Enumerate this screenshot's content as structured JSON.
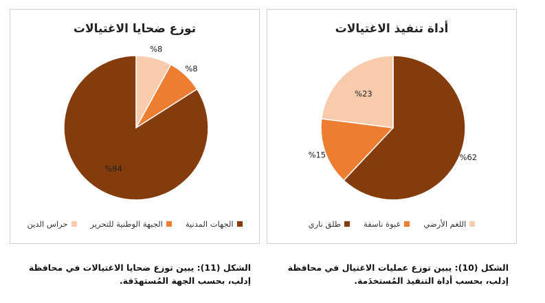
{
  "chart_data": [
    {
      "type": "pie",
      "title": "توزع ضحايا الاغتيالات",
      "series": [
        {
          "label": "حراس الدين",
          "value": 8,
          "display": "%8",
          "color": "#F8CBAD"
        },
        {
          "label": "الجبهة الوطنية للتحرير",
          "value": 8,
          "display": "%8",
          "color": "#ED7D31"
        },
        {
          "label": "الجهات المدنية",
          "value": 84,
          "display": "%84",
          "color": "#843C0C"
        }
      ],
      "legend_position": "bottom"
    },
    {
      "type": "pie",
      "title": "أداة تنفيذ الاغتيالات",
      "series": [
        {
          "label": "طلق ناري",
          "value": 62,
          "display": "%62",
          "color": "#843C0C"
        },
        {
          "label": "عبوة ناسفة",
          "value": 15,
          "display": "%15",
          "color": "#ED7D31"
        },
        {
          "label": "اللغم الأرضي",
          "value": 23,
          "display": "%23",
          "color": "#F8CBAD"
        }
      ],
      "legend_position": "bottom"
    }
  ],
  "captions": {
    "left": "الشكل (11): يبين توزع ضحايا الاغتيالات في محافظة إدلب، بحسب الجهة المُستهدَفة.",
    "right": "الشكل (10): يبين توزع عمليات الاغتيال في محافظة إدلب، بحسب أداة التنفيذ المُستخدَمة."
  }
}
